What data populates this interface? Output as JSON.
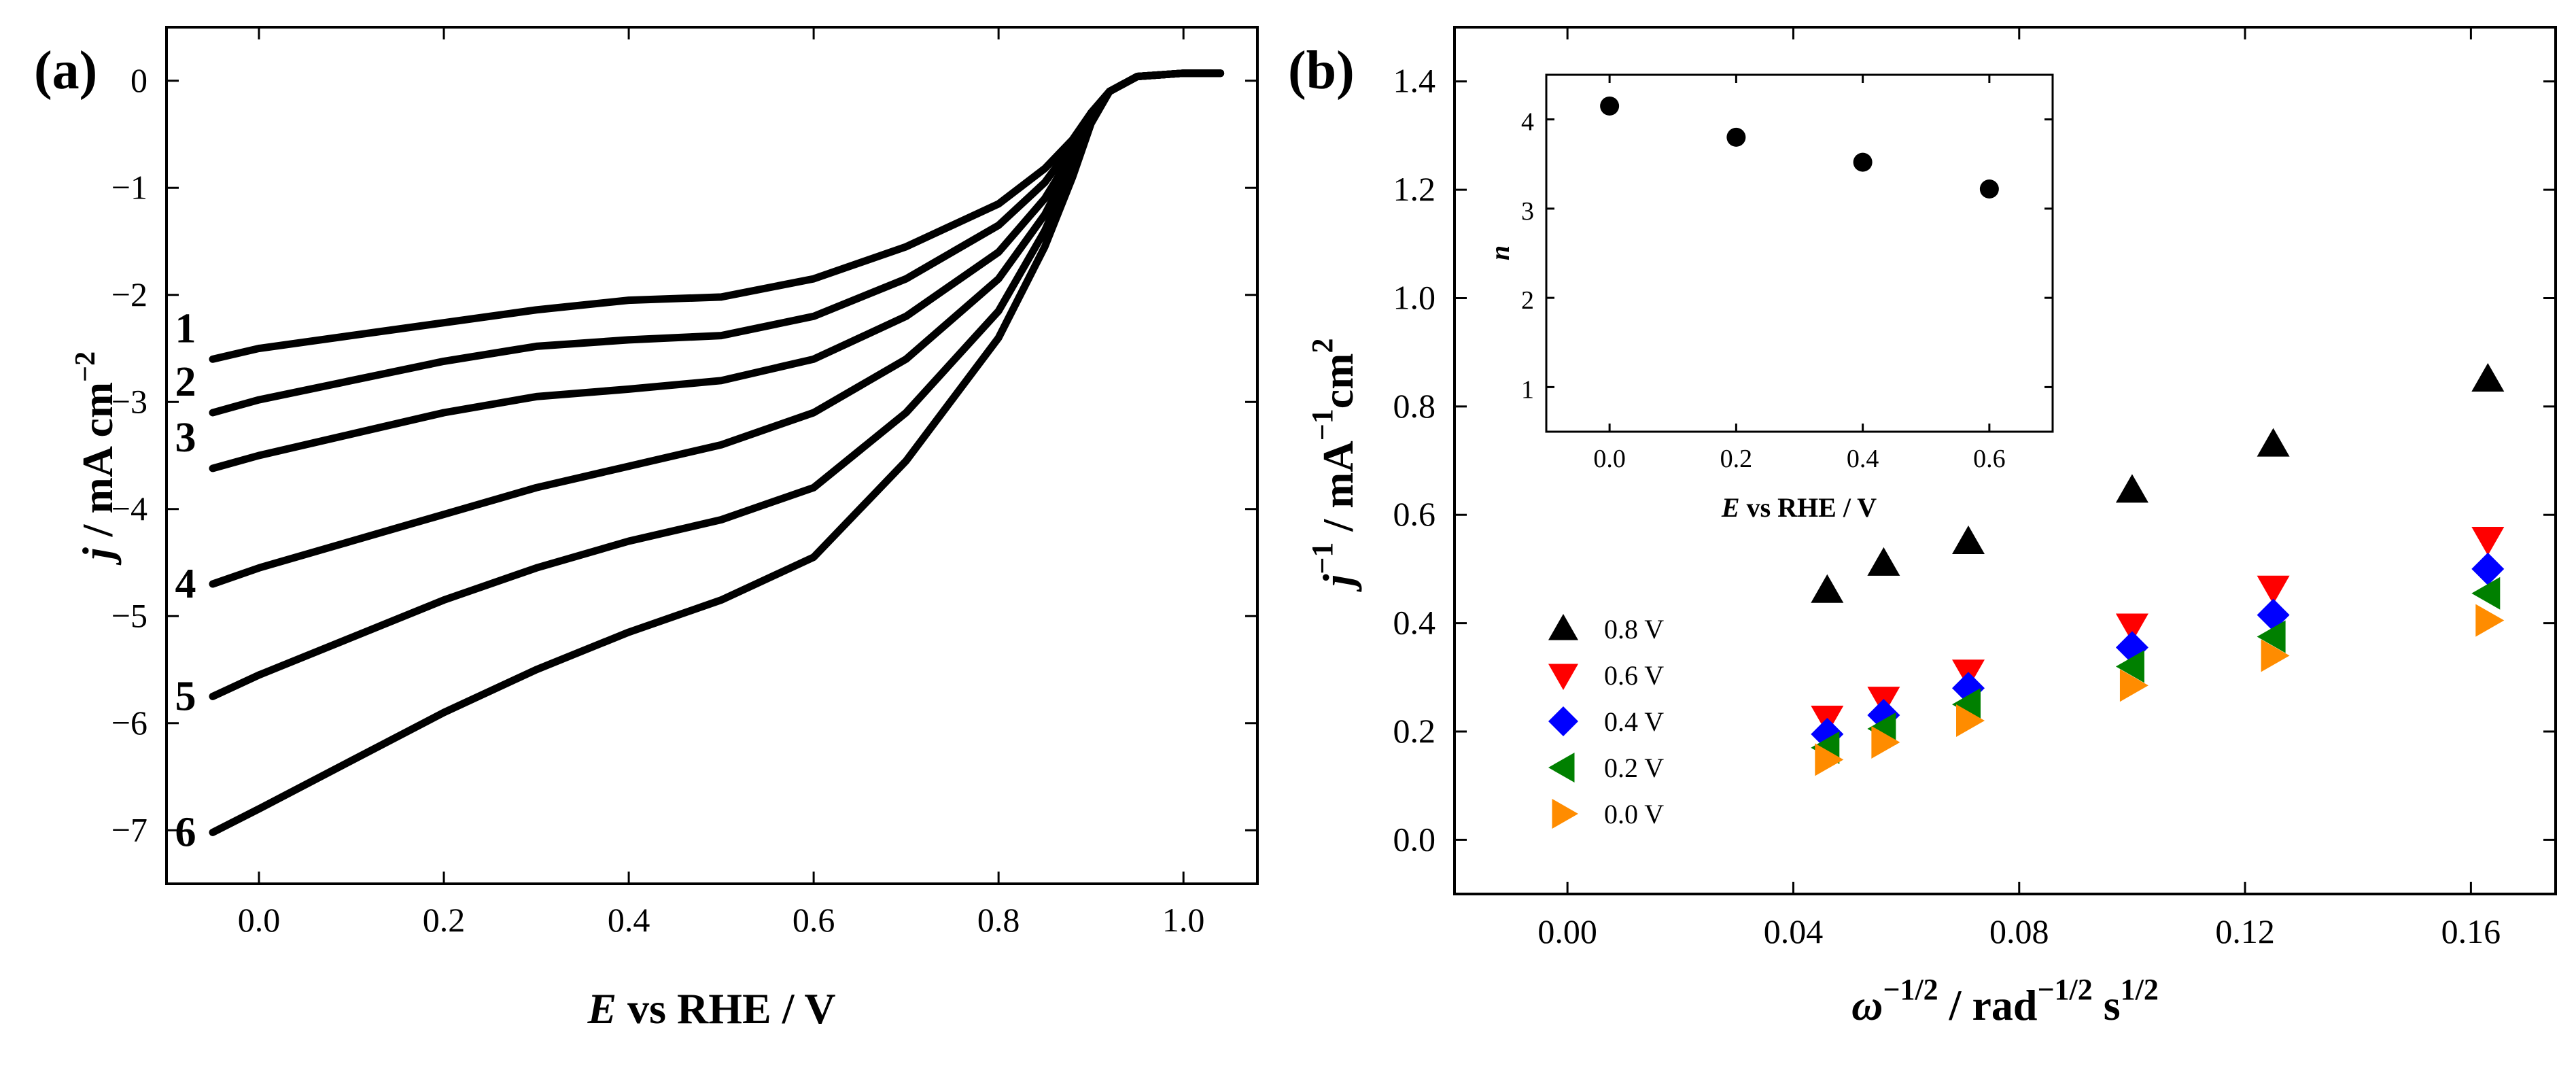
{
  "chart_data": [
    {
      "panel": "(a)",
      "type": "line",
      "xlabel_var": "E",
      "xlabel_rest": " vs RHE / V",
      "ylabel_var": "j",
      "ylabel_rest": " / mA cm",
      "ylabel_sup": "−2",
      "xlim": [
        -0.1,
        1.08
      ],
      "ylim": [
        -7.5,
        0.5
      ],
      "xticks": [
        0.0,
        0.2,
        0.4,
        0.6,
        0.8,
        1.0
      ],
      "xtick_labels": [
        "0.0",
        "0.2",
        "0.4",
        "0.6",
        "0.8",
        "1.0"
      ],
      "yticks": [
        0,
        -1,
        -2,
        -3,
        -4,
        -5,
        -6,
        -7
      ],
      "ytick_labels": [
        "0",
        "−1",
        "−2",
        "−3",
        "−4",
        "−5",
        "−6",
        "−7"
      ],
      "series": [
        {
          "label": "1",
          "x": [
            -0.05,
            0.0,
            0.1,
            0.2,
            0.3,
            0.4,
            0.5,
            0.6,
            0.7,
            0.8,
            0.85,
            0.88,
            0.9,
            0.92,
            0.95,
            1.0,
            1.04
          ],
          "y": [
            -2.6,
            -2.5,
            -2.38,
            -2.26,
            -2.14,
            -2.05,
            -2.02,
            -1.85,
            -1.55,
            -1.15,
            -0.82,
            -0.55,
            -0.3,
            -0.1,
            0.04,
            0.07,
            0.07
          ]
        },
        {
          "label": "2",
          "x": [
            -0.05,
            0.0,
            0.1,
            0.2,
            0.3,
            0.4,
            0.5,
            0.6,
            0.7,
            0.8,
            0.85,
            0.88,
            0.9,
            0.92,
            0.95,
            1.0,
            1.04
          ],
          "y": [
            -3.1,
            -2.98,
            -2.8,
            -2.62,
            -2.48,
            -2.42,
            -2.38,
            -2.2,
            -1.85,
            -1.35,
            -0.95,
            -0.6,
            -0.3,
            -0.1,
            0.04,
            0.07,
            0.07
          ]
        },
        {
          "label": "3",
          "x": [
            -0.05,
            0.0,
            0.1,
            0.2,
            0.3,
            0.4,
            0.5,
            0.6,
            0.7,
            0.8,
            0.85,
            0.88,
            0.9,
            0.92,
            0.95,
            1.0,
            1.04
          ],
          "y": [
            -3.62,
            -3.5,
            -3.3,
            -3.1,
            -2.95,
            -2.88,
            -2.8,
            -2.6,
            -2.2,
            -1.6,
            -1.1,
            -0.68,
            -0.33,
            -0.1,
            0.04,
            0.07,
            0.07
          ]
        },
        {
          "label": "4",
          "x": [
            -0.05,
            0.0,
            0.1,
            0.2,
            0.3,
            0.4,
            0.5,
            0.6,
            0.7,
            0.8,
            0.85,
            0.88,
            0.9,
            0.92,
            0.95,
            1.0,
            1.04
          ],
          "y": [
            -4.7,
            -4.55,
            -4.3,
            -4.05,
            -3.8,
            -3.6,
            -3.4,
            -3.1,
            -2.6,
            -1.85,
            -1.25,
            -0.75,
            -0.35,
            -0.1,
            0.04,
            0.07,
            0.07
          ]
        },
        {
          "label": "5",
          "x": [
            -0.05,
            0.0,
            0.1,
            0.2,
            0.3,
            0.4,
            0.5,
            0.6,
            0.7,
            0.8,
            0.85,
            0.88,
            0.9,
            0.92,
            0.95,
            1.0,
            1.04
          ],
          "y": [
            -5.75,
            -5.55,
            -5.2,
            -4.85,
            -4.55,
            -4.3,
            -4.1,
            -3.8,
            -3.1,
            -2.15,
            -1.4,
            -0.82,
            -0.38,
            -0.1,
            0.04,
            0.07,
            0.07
          ]
        },
        {
          "label": "6",
          "x": [
            -0.05,
            0.0,
            0.1,
            0.2,
            0.3,
            0.4,
            0.5,
            0.6,
            0.7,
            0.8,
            0.85,
            0.88,
            0.9,
            0.92,
            0.95,
            1.0,
            1.04
          ],
          "y": [
            -7.02,
            -6.8,
            -6.35,
            -5.9,
            -5.5,
            -5.15,
            -4.85,
            -4.45,
            -3.55,
            -2.4,
            -1.55,
            -0.9,
            -0.4,
            -0.1,
            0.04,
            0.07,
            0.07
          ]
        }
      ]
    },
    {
      "panel": "(b)",
      "type": "scatter",
      "xlabel_var": "ω",
      "xlabel_sup1": "−1/2",
      "xlabel_mid": "  /  rad",
      "xlabel_sup2": "−1/2",
      "xlabel_s": " s",
      "xlabel_sup3": "1/2",
      "ylabel_var": "j",
      "ylabel_sup1": "−1",
      "ylabel_mid": " / mA",
      "ylabel_sup2": "−1",
      "ylabel_cm": "cm",
      "ylabel_sup3": "2",
      "xlim": [
        -0.02,
        0.175
      ],
      "ylim": [
        -0.1,
        1.5
      ],
      "xticks": [
        0.0,
        0.04,
        0.08,
        0.12,
        0.16
      ],
      "xtick_labels": [
        "0.00",
        "0.04",
        "0.08",
        "0.12",
        "0.16"
      ],
      "yticks": [
        0.0,
        0.2,
        0.4,
        0.6,
        0.8,
        1.0,
        1.2,
        1.4
      ],
      "ytick_labels": [
        "0.0",
        "0.2",
        "0.4",
        "0.6",
        "0.8",
        "1.0",
        "1.2",
        "1.4"
      ],
      "x": [
        0.046,
        0.056,
        0.071,
        0.1,
        0.125,
        0.163
      ],
      "series": [
        {
          "name": "0.8 V",
          "marker": "triangle-up",
          "color": "#000000",
          "values": [
            0.46,
            0.51,
            0.55,
            0.645,
            0.73,
            0.85
          ]
        },
        {
          "name": "0.6 V",
          "marker": "triangle-down",
          "color": "#ff0000",
          "values": [
            0.225,
            0.26,
            0.31,
            0.395,
            0.465,
            0.555
          ]
        },
        {
          "name": "0.4 V",
          "marker": "diamond",
          "color": "#0000ff",
          "values": [
            0.195,
            0.23,
            0.28,
            0.355,
            0.415,
            0.5
          ]
        },
        {
          "name": "0.2 V",
          "marker": "triangle-left",
          "color": "#008000",
          "values": [
            0.17,
            0.205,
            0.25,
            0.32,
            0.375,
            0.455
          ]
        },
        {
          "name": "0.0 V",
          "marker": "triangle-right",
          "color": "#ff8c00",
          "values": [
            0.148,
            0.18,
            0.22,
            0.285,
            0.34,
            0.405
          ]
        }
      ],
      "legend_position": "bottom-left",
      "inset": {
        "type": "scatter",
        "xlabel_var": "E",
        "xlabel_rest": " vs RHE / V",
        "ylabel": "n",
        "xlim": [
          -0.1,
          0.7
        ],
        "ylim": [
          0.5,
          4.5
        ],
        "xticks": [
          0.0,
          0.2,
          0.4,
          0.6
        ],
        "xtick_labels": [
          "0.0",
          "0.2",
          "0.4",
          "0.6"
        ],
        "yticks": [
          1,
          2,
          3,
          4
        ],
        "ytick_labels": [
          "1",
          "2",
          "3",
          "4"
        ],
        "x": [
          0.0,
          0.2,
          0.4,
          0.6
        ],
        "values": [
          4.15,
          3.8,
          3.52,
          3.22
        ],
        "color": "#000000"
      }
    }
  ]
}
